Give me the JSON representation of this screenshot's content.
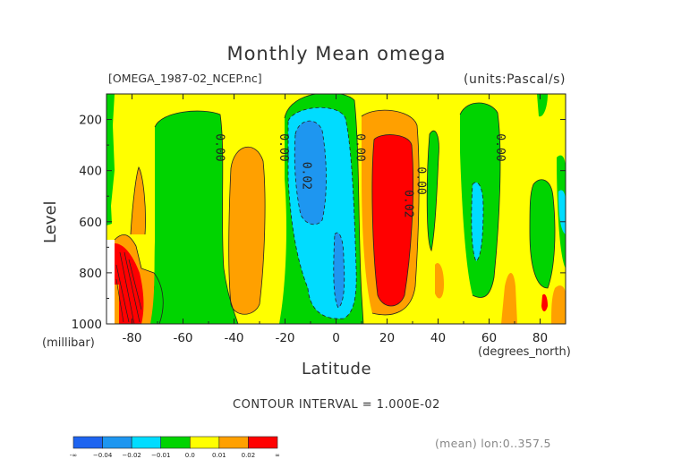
{
  "header": {
    "title": "Monthly Mean omega",
    "file": "[OMEGA_1987-02_NCEP.nc]",
    "units": "(units:Pascal/s)"
  },
  "axes": {
    "xlabel": "Latitude",
    "xunit": "(degrees_north)",
    "ylabel": "Level",
    "yunit": "(millibar)"
  },
  "footer": {
    "contour_interval": "CONTOUR INTERVAL = 1.000E-02",
    "mean_note": "(mean) lon:0..357.5"
  },
  "chart_data": {
    "type": "heatmap",
    "title": "Monthly Mean omega",
    "xlabel": "Latitude",
    "ylabel": "Level",
    "xlim": [
      -90,
      90
    ],
    "ylim": [
      1000,
      100
    ],
    "x_ticks": [
      -80,
      -60,
      -40,
      -20,
      0,
      20,
      40,
      60,
      80
    ],
    "x_tick_labels": [
      "-80",
      "-60",
      "-40",
      "-20",
      "0",
      "20",
      "40",
      "60",
      "80"
    ],
    "y_ticks": [
      200,
      400,
      600,
      800,
      1000
    ],
    "y_tick_labels": [
      "200",
      "400",
      "600",
      "800",
      "1000"
    ],
    "contour_interval": 0.01,
    "contour_labels": [
      {
        "text": "0.00",
        "lat": -47,
        "lev": 310
      },
      {
        "text": "0.00",
        "lat": -22,
        "lev": 310
      },
      {
        "text": "0.02",
        "lat": -13,
        "lev": 420
      },
      {
        "text": "0.00",
        "lat": 8,
        "lev": 310
      },
      {
        "text": "0.02",
        "lat": 27,
        "lev": 530
      },
      {
        "text": "0.00",
        "lat": 32,
        "lev": 440
      },
      {
        "text": "0.00",
        "lat": 63,
        "lev": 310
      }
    ],
    "colorbar": {
      "colors": [
        "#1e64f0",
        "#1e96f0",
        "#00dcff",
        "#00d400",
        "#ffff00",
        "#ffa000",
        "#ff0000"
      ],
      "tick_labels": [
        "-∞",
        "−0.04",
        "−0.02",
        "−0.01",
        "0.0",
        "0.01",
        "0.02",
        "∞"
      ]
    },
    "regions": [
      {
        "level": "positive_small",
        "color": "#ffff00",
        "note": "background 0.00 to 0.01"
      },
      {
        "level": "negative_small",
        "color": "#00d400",
        "lat_range": [
          -90,
          -85
        ],
        "lev_range": [
          100,
          600
        ]
      },
      {
        "level": "negative_small",
        "color": "#00d400",
        "lat_range": [
          -78,
          -28
        ],
        "lev_range": [
          140,
          1000
        ]
      },
      {
        "level": "positive_mid",
        "color": "#ffa000",
        "lat_range": [
          -48,
          -32
        ],
        "lev_range": [
          270,
          960
        ]
      },
      {
        "level": "negative_small",
        "color": "#00d400",
        "lat_range": [
          -25,
          12
        ],
        "lev_range": [
          110,
          1000
        ]
      },
      {
        "level": "negative_mid",
        "color": "#00dcff",
        "lat_range": [
          -22,
          6
        ],
        "lev_range": [
          120,
          980
        ]
      },
      {
        "level": "negative_large",
        "color": "#1e96f0",
        "lat_range": [
          -20,
          -7
        ],
        "lev_range": [
          170,
          610
        ]
      },
      {
        "level": "negative_large",
        "color": "#1e96f0",
        "lat_range": [
          -2,
          3
        ],
        "lev_range": [
          650,
          940
        ]
      },
      {
        "level": "positive_mid",
        "color": "#ffa000",
        "lat_range": [
          12,
          33
        ],
        "lev_range": [
          120,
          1000
        ]
      },
      {
        "level": "positive_large",
        "color": "#ff0000",
        "lat_range": [
          15,
          28
        ],
        "lev_range": [
          260,
          960
        ]
      },
      {
        "level": "negative_small",
        "color": "#00d400",
        "lat_range": [
          42,
          67
        ],
        "lev_range": [
          140,
          880
        ]
      },
      {
        "level": "negative_mid",
        "color": "#00dcff",
        "lat_range": [
          52,
          59
        ],
        "lev_range": [
          470,
          820
        ]
      },
      {
        "level": "negative_small",
        "color": "#00d400",
        "lat_range": [
          79,
          87
        ],
        "lev_range": [
          470,
          870
        ]
      },
      {
        "level": "positive_mid",
        "color": "#ffa000",
        "lat_range": [
          -84,
          -71
        ],
        "lev_range": [
          440,
          1000
        ]
      },
      {
        "level": "positive_large",
        "color": "#ff0000",
        "lat_range": [
          -88,
          -82
        ],
        "lev_range": [
          760,
          1000
        ]
      }
    ]
  }
}
